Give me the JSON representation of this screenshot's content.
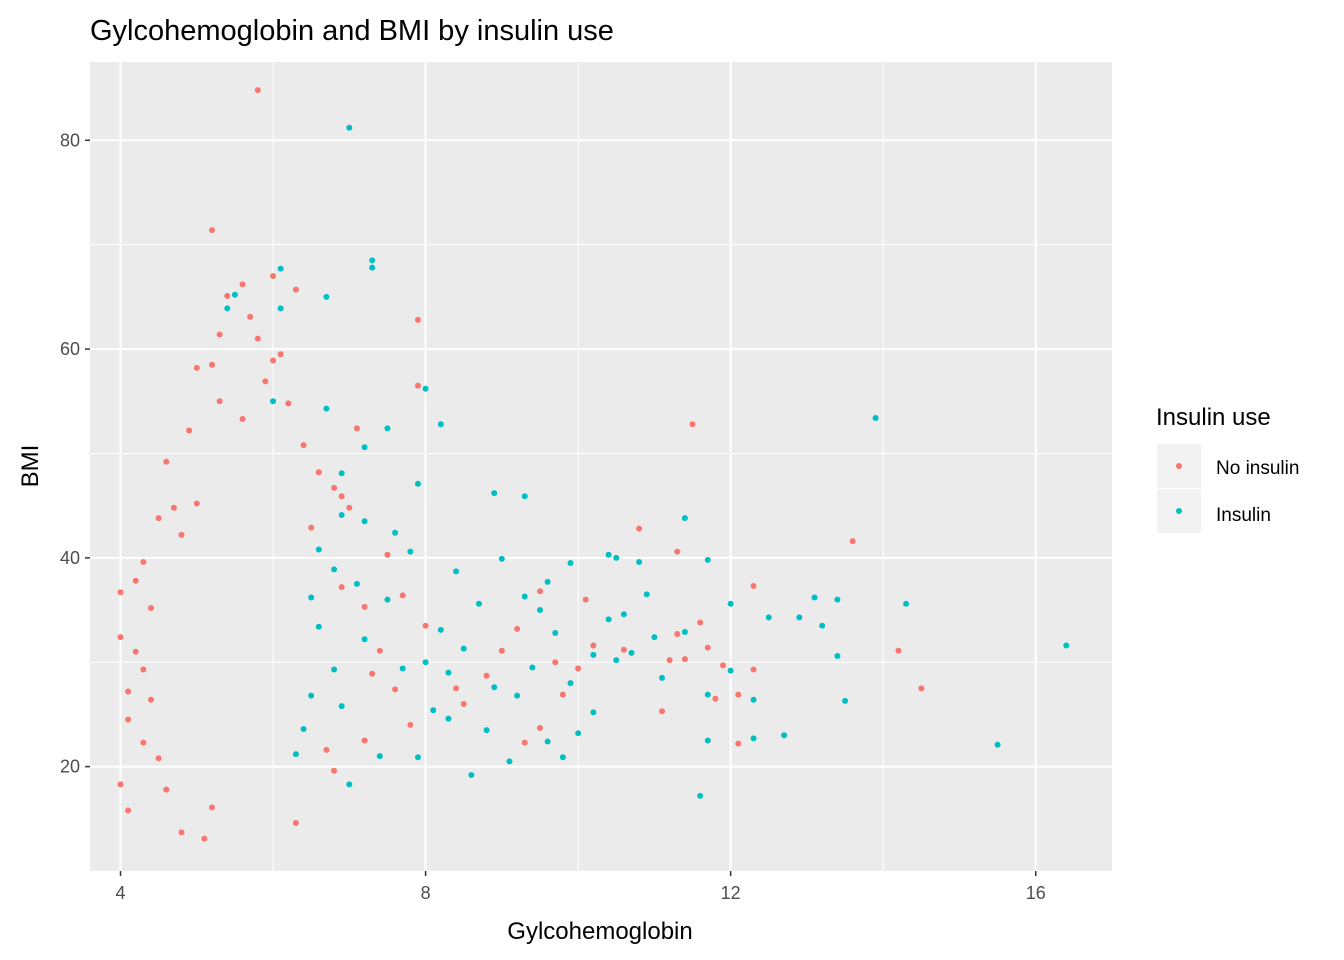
{
  "chart_data": {
    "type": "scatter",
    "title": "Gylcohemoglobin and BMI by insulin use",
    "xlabel": "Gylcohemoglobin",
    "ylabel": "BMI",
    "xlim": [
      3.6,
      17.0
    ],
    "ylim": [
      10.0,
      87.5
    ],
    "xticks": [
      4,
      8,
      12,
      16
    ],
    "yticks": [
      20,
      40,
      60,
      80
    ],
    "xticklabels": [
      "4",
      "8",
      "12",
      "16"
    ],
    "yticklabels": [
      "20",
      "40",
      "60",
      "80"
    ],
    "grid": true,
    "legend": {
      "title": "Insulin use",
      "position": "right"
    },
    "series": [
      {
        "name": "No insulin",
        "color": "#F8766D",
        "points": [
          [
            5.8,
            84.8
          ],
          [
            5.2,
            71.4
          ],
          [
            6.0,
            67.0
          ],
          [
            5.6,
            66.2
          ],
          [
            6.3,
            65.7
          ],
          [
            5.4,
            65.1
          ],
          [
            5.7,
            63.1
          ],
          [
            5.3,
            61.4
          ],
          [
            5.8,
            61.0
          ],
          [
            6.1,
            59.5
          ],
          [
            5.0,
            58.2
          ],
          [
            7.9,
            62.8
          ],
          [
            7.9,
            56.5
          ],
          [
            11.5,
            52.8
          ],
          [
            13.6,
            41.6
          ],
          [
            10.8,
            42.8
          ],
          [
            11.3,
            40.6
          ],
          [
            12.3,
            37.3
          ],
          [
            11.1,
            25.3
          ],
          [
            11.3,
            32.7
          ],
          [
            11.9,
            29.7
          ],
          [
            12.3,
            29.3
          ],
          [
            14.2,
            31.1
          ],
          [
            14.5,
            27.5
          ],
          [
            11.6,
            33.8
          ],
          [
            11.7,
            31.4
          ],
          [
            11.4,
            30.3
          ],
          [
            12.1,
            26.9
          ],
          [
            11.2,
            30.2
          ],
          [
            10.6,
            31.2
          ],
          [
            10.0,
            29.4
          ],
          [
            9.2,
            33.2
          ],
          [
            9.5,
            36.8
          ],
          [
            9.8,
            26.9
          ],
          [
            8.8,
            28.7
          ],
          [
            8.4,
            27.5
          ],
          [
            7.1,
            52.4
          ],
          [
            6.8,
            46.7
          ],
          [
            7.0,
            44.8
          ],
          [
            6.5,
            42.9
          ],
          [
            6.9,
            37.2
          ],
          [
            7.2,
            35.3
          ],
          [
            4.0,
            36.7
          ],
          [
            4.0,
            18.3
          ],
          [
            4.1,
            15.8
          ],
          [
            4.0,
            32.4
          ],
          [
            4.1,
            24.5
          ],
          [
            4.2,
            31.0
          ],
          [
            4.4,
            35.2
          ],
          [
            4.3,
            39.6
          ],
          [
            4.6,
            49.2
          ],
          [
            5.1,
            13.1
          ],
          [
            5.2,
            16.1
          ],
          [
            6.3,
            14.6
          ],
          [
            6.8,
            19.6
          ],
          [
            7.2,
            22.5
          ],
          [
            7.6,
            27.4
          ],
          [
            8.5,
            26.0
          ],
          [
            9.3,
            22.3
          ],
          [
            9.5,
            23.7
          ],
          [
            10.2,
            31.6
          ],
          [
            11.8,
            26.5
          ],
          [
            12.1,
            22.2
          ],
          [
            8.0,
            33.5
          ],
          [
            7.5,
            40.3
          ],
          [
            6.4,
            50.8
          ],
          [
            6.6,
            48.2
          ],
          [
            5.3,
            55.0
          ],
          [
            5.6,
            53.3
          ],
          [
            4.9,
            52.2
          ],
          [
            5.9,
            56.9
          ],
          [
            6.2,
            54.8
          ],
          [
            6.9,
            45.9
          ],
          [
            5.0,
            45.2
          ],
          [
            4.5,
            43.8
          ],
          [
            4.7,
            44.8
          ],
          [
            4.8,
            42.2
          ],
          [
            9.0,
            31.1
          ],
          [
            9.7,
            30.0
          ],
          [
            10.1,
            36.0
          ],
          [
            7.4,
            31.1
          ],
          [
            7.8,
            24.0
          ],
          [
            7.3,
            28.9
          ],
          [
            7.7,
            36.4
          ],
          [
            6.7,
            21.6
          ],
          [
            4.1,
            27.2
          ],
          [
            4.3,
            29.3
          ],
          [
            4.5,
            20.8
          ],
          [
            4.3,
            22.3
          ],
          [
            4.6,
            17.8
          ],
          [
            4.8,
            13.7
          ],
          [
            4.4,
            26.4
          ],
          [
            4.2,
            37.8
          ],
          [
            5.2,
            58.5
          ],
          [
            6.0,
            58.9
          ]
        ]
      },
      {
        "name": "Insulin",
        "color": "#00BFC4",
        "points": [
          [
            7.0,
            81.2
          ],
          [
            7.3,
            68.5
          ],
          [
            7.3,
            67.8
          ],
          [
            6.1,
            67.7
          ],
          [
            5.5,
            65.2
          ],
          [
            6.7,
            65.0
          ],
          [
            5.4,
            63.9
          ],
          [
            6.1,
            63.9
          ],
          [
            8.0,
            56.2
          ],
          [
            6.0,
            55.0
          ],
          [
            6.7,
            54.3
          ],
          [
            13.9,
            53.4
          ],
          [
            8.2,
            52.8
          ],
          [
            7.5,
            52.4
          ],
          [
            7.2,
            50.6
          ],
          [
            7.9,
            47.1
          ],
          [
            8.9,
            46.2
          ],
          [
            9.3,
            45.9
          ],
          [
            11.4,
            43.8
          ],
          [
            8.4,
            38.7
          ],
          [
            9.6,
            37.7
          ],
          [
            10.4,
            40.3
          ],
          [
            11.7,
            39.8
          ],
          [
            10.8,
            39.6
          ],
          [
            12.0,
            35.6
          ],
          [
            12.5,
            34.3
          ],
          [
            12.9,
            34.3
          ],
          [
            13.1,
            36.2
          ],
          [
            13.4,
            36.0
          ],
          [
            14.3,
            35.6
          ],
          [
            13.2,
            33.5
          ],
          [
            13.4,
            30.6
          ],
          [
            13.5,
            26.3
          ],
          [
            12.3,
            26.4
          ],
          [
            12.3,
            22.7
          ],
          [
            12.7,
            23.0
          ],
          [
            11.6,
            17.2
          ],
          [
            11.7,
            22.5
          ],
          [
            11.7,
            26.9
          ],
          [
            12.0,
            29.2
          ],
          [
            11.4,
            32.9
          ],
          [
            10.5,
            40.0
          ],
          [
            10.4,
            34.1
          ],
          [
            15.5,
            22.1
          ],
          [
            16.4,
            31.6
          ],
          [
            6.6,
            40.8
          ],
          [
            6.5,
            36.2
          ],
          [
            6.6,
            33.4
          ],
          [
            6.8,
            29.3
          ],
          [
            6.9,
            25.8
          ],
          [
            6.4,
            23.6
          ],
          [
            6.3,
            21.2
          ],
          [
            6.5,
            26.8
          ],
          [
            7.0,
            18.3
          ],
          [
            7.4,
            21.0
          ],
          [
            7.9,
            20.9
          ],
          [
            8.0,
            30.0
          ],
          [
            8.3,
            24.6
          ],
          [
            8.6,
            19.2
          ],
          [
            8.8,
            23.5
          ],
          [
            9.1,
            20.5
          ],
          [
            9.6,
            22.4
          ],
          [
            9.8,
            20.9
          ],
          [
            10.0,
            23.2
          ],
          [
            10.2,
            25.2
          ],
          [
            10.5,
            30.2
          ],
          [
            10.6,
            34.6
          ],
          [
            10.9,
            36.5
          ],
          [
            11.1,
            28.5
          ],
          [
            9.9,
            39.5
          ],
          [
            9.3,
            36.3
          ],
          [
            8.7,
            35.6
          ],
          [
            8.2,
            33.1
          ],
          [
            7.6,
            42.4
          ],
          [
            7.5,
            36.0
          ],
          [
            7.1,
            37.5
          ],
          [
            6.9,
            44.1
          ],
          [
            7.8,
            40.6
          ],
          [
            8.3,
            29.0
          ],
          [
            8.9,
            27.6
          ],
          [
            9.4,
            29.5
          ],
          [
            9.7,
            32.8
          ],
          [
            10.2,
            30.7
          ],
          [
            8.1,
            25.4
          ],
          [
            7.2,
            32.2
          ],
          [
            6.8,
            38.9
          ],
          [
            9.0,
            39.9
          ],
          [
            9.5,
            35.0
          ],
          [
            10.7,
            30.9
          ],
          [
            11.0,
            32.4
          ],
          [
            8.5,
            31.3
          ],
          [
            7.7,
            29.4
          ],
          [
            9.2,
            26.8
          ],
          [
            9.9,
            28.0
          ],
          [
            6.9,
            48.1
          ],
          [
            7.2,
            43.5
          ]
        ]
      }
    ]
  }
}
